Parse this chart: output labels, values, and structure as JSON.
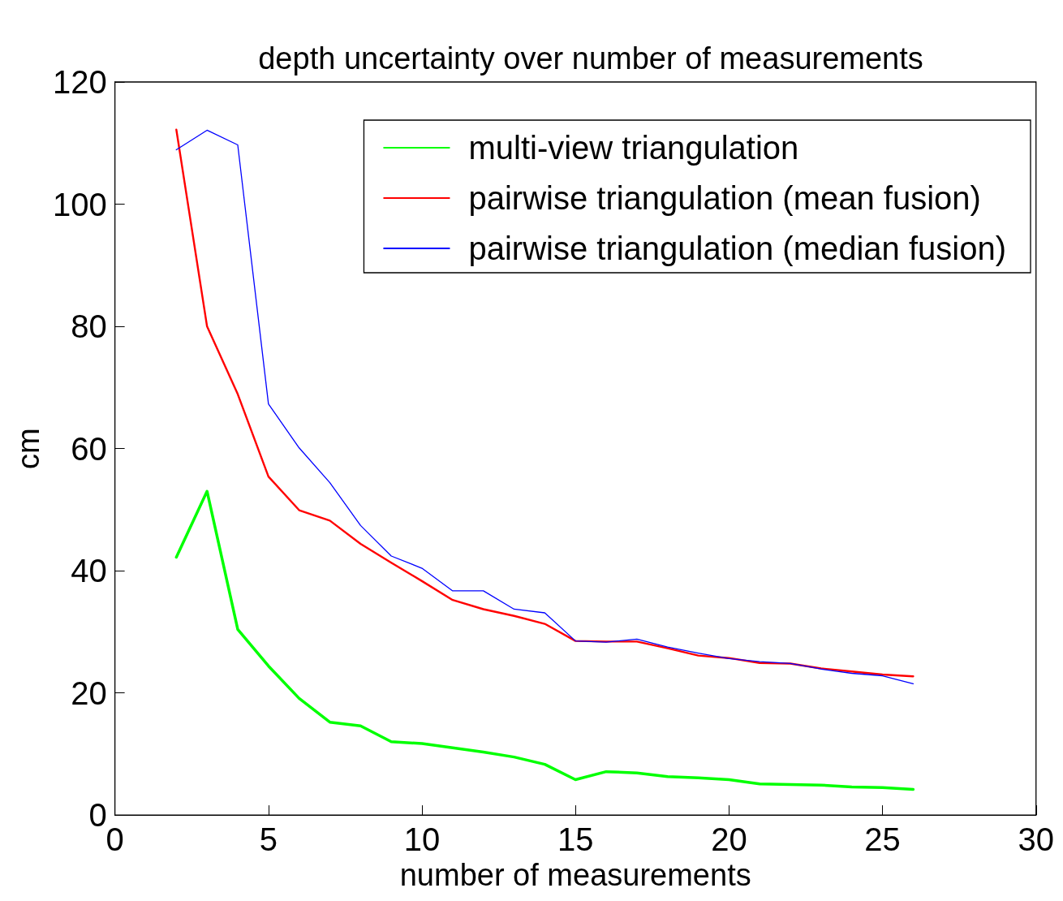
{
  "chart_data": {
    "type": "line",
    "title": "depth uncertainty over number of measurements",
    "xlabel": "number of measurements",
    "ylabel": "cm",
    "x": [
      2,
      3,
      4,
      5,
      6,
      7,
      8,
      9,
      10,
      11,
      12,
      13,
      14,
      15,
      16,
      17,
      18,
      19,
      20,
      21,
      22,
      23,
      24,
      25,
      26
    ],
    "series": [
      {
        "name": "multi-view triangulation",
        "color": "#00ff00",
        "values": [
          42.2,
          53,
          30.4,
          24.4,
          19.1,
          15.2,
          14.6,
          12,
          11.7,
          11,
          10.3,
          9.5,
          8.3,
          5.8,
          7.1,
          6.9,
          6.3,
          6.1,
          5.8,
          5.1,
          5,
          4.9,
          4.6,
          4.5,
          4.2
        ]
      },
      {
        "name": "pairwise triangulation (mean fusion)",
        "color": "#ff0000",
        "values": [
          112.2,
          80,
          68.9,
          55.4,
          49.9,
          48.2,
          44.4,
          41.3,
          38.3,
          35.2,
          33.7,
          32.6,
          31.3,
          28.5,
          28.4,
          28.4,
          27.3,
          26.1,
          25.7,
          24.9,
          24.8,
          24,
          23.5,
          23,
          22.7
        ]
      },
      {
        "name": "pairwise triangulation (median fusion)",
        "color": "#0000ff",
        "values": [
          108.9,
          112.1,
          109.7,
          67.3,
          60.1,
          54.4,
          47.4,
          42.4,
          40.4,
          36.7,
          36.7,
          33.7,
          33.1,
          28.5,
          28.3,
          28.8,
          27.5,
          26.5,
          25.6,
          25.1,
          24.8,
          23.9,
          23.2,
          22.8,
          21.5
        ]
      }
    ],
    "xlim": [
      0,
      30
    ],
    "xticks": [
      0,
      5,
      10,
      15,
      20,
      25,
      30
    ],
    "ylim": [
      0,
      120
    ],
    "yticks": [
      0,
      20,
      40,
      60,
      80,
      100,
      120
    ],
    "grid": false,
    "legend": "top right",
    "marker": "none",
    "line_style": "solid"
  }
}
